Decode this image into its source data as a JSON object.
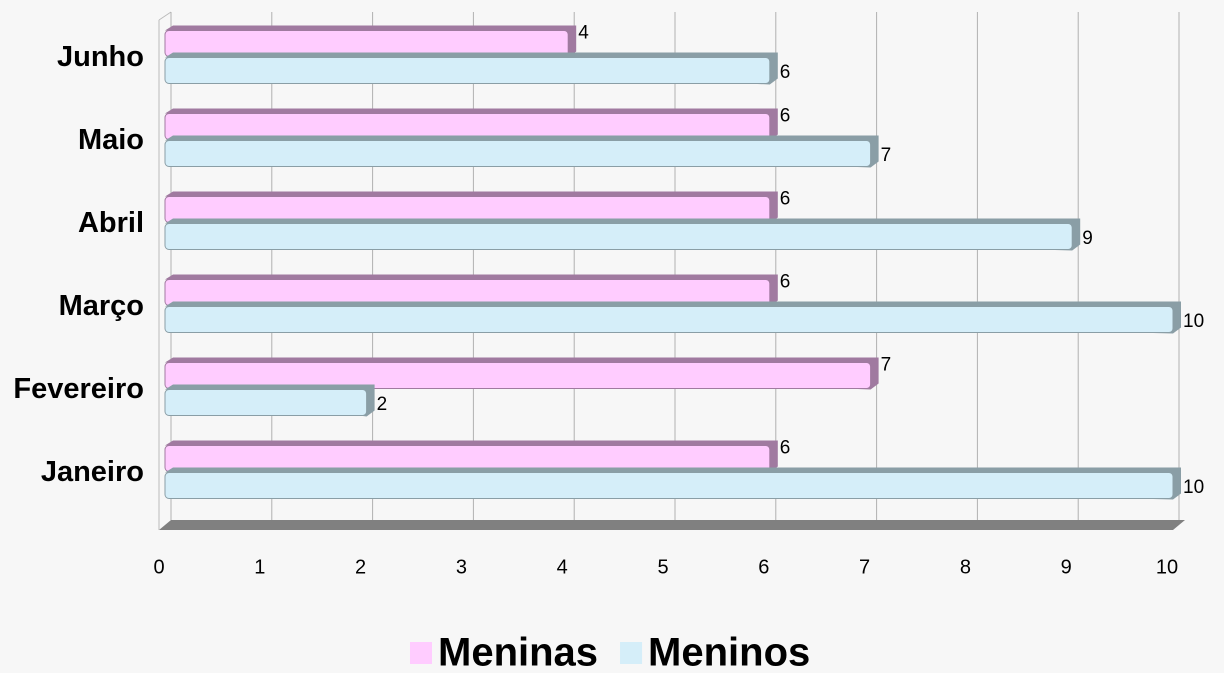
{
  "chart_data": {
    "type": "barh",
    "categories": [
      "Janeiro",
      "Fevereiro",
      "Março",
      "Abril",
      "Maio",
      "Junho"
    ],
    "series": [
      {
        "name": "Meninas",
        "color": "#ffccff",
        "values": [
          6,
          7,
          6,
          6,
          6,
          4
        ]
      },
      {
        "name": "Meninos",
        "color": "#d5eef9",
        "values": [
          10,
          2,
          10,
          9,
          7,
          6
        ]
      }
    ],
    "xlim": [
      0,
      10
    ],
    "xticks": [
      0,
      1,
      2,
      3,
      4,
      5,
      6,
      7,
      8,
      9,
      10
    ],
    "grid": true,
    "legend": "bottom"
  }
}
